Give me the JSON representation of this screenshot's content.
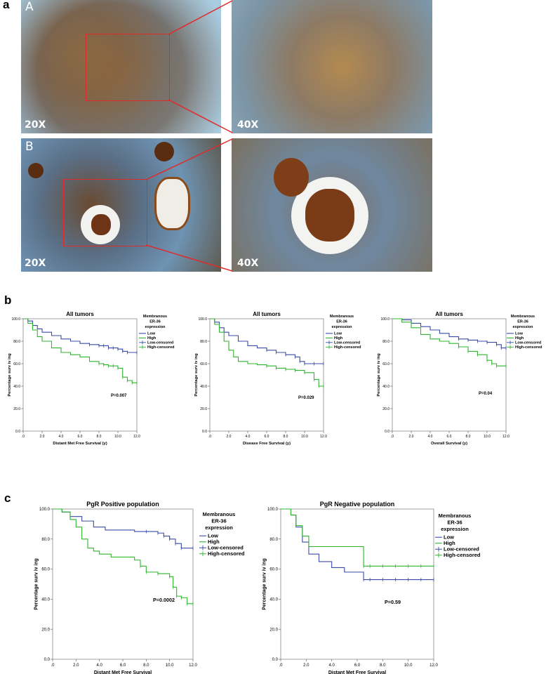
{
  "panel_a": {
    "letter": "a",
    "rows": [
      {
        "tag": "A",
        "left_mag": "20X",
        "right_mag": "40X"
      },
      {
        "tag": "B",
        "left_mag": "20X",
        "right_mag": "40X"
      }
    ]
  },
  "panel_b": {
    "letter": "b",
    "legend_title": [
      "Membranous",
      "ER-36",
      "expression"
    ],
    "legend_items": [
      "Low",
      "High",
      "Low-censored",
      "High-censored"
    ],
    "ylabel": "Percentage surv iv ing"
  },
  "panel_c": {
    "letter": "c",
    "legend_title": [
      "Membranous",
      "ER-36",
      "expression"
    ],
    "legend_items": [
      "Low",
      "High",
      "Low-censored",
      "High-censored"
    ],
    "ylabel": "Percentage surv iv ing"
  },
  "colors": {
    "low": "#3a4ba8",
    "high": "#2fb52f"
  },
  "chart_data": [
    {
      "type": "line",
      "title": "All tumors",
      "xlabel": "Distant Met Free Survival (y)",
      "ylabel": "Percentage surv iv ing",
      "xlim": [
        0,
        12
      ],
      "ylim": [
        0,
        100
      ],
      "x_ticks": [
        ".0",
        "2.0",
        "4.0",
        "6.0",
        "8.0",
        "10.0",
        "12.0"
      ],
      "y_ticks": [
        "0.0",
        "20.0",
        "40.0",
        "60.0",
        "80.0",
        "100.0"
      ],
      "annotation": "P=0.007",
      "series": [
        {
          "name": "Low",
          "x": [
            0,
            0.5,
            1,
            1.5,
            2,
            3,
            4,
            5,
            6,
            7,
            8,
            8.5,
            9,
            9.5,
            10,
            10.5,
            11,
            12
          ],
          "y": [
            100,
            98,
            94,
            91,
            88,
            85,
            82,
            80,
            78,
            77,
            76,
            76,
            74,
            74,
            73,
            71,
            70,
            70
          ]
        },
        {
          "name": "High",
          "x": [
            0,
            0.5,
            1,
            1.5,
            2,
            3,
            4,
            5,
            6,
            7,
            8,
            8.5,
            9,
            9.5,
            10,
            10.5,
            11,
            11.5,
            12
          ],
          "y": [
            100,
            96,
            90,
            84,
            80,
            74,
            70,
            68,
            66,
            62,
            60,
            59,
            58,
            58,
            56,
            48,
            45,
            43,
            43
          ]
        }
      ]
    },
    {
      "type": "line",
      "title": "All tumors",
      "xlabel": "Disease Free Survival (y)",
      "ylabel": "Percentage surv iv ing",
      "xlim": [
        0,
        12
      ],
      "ylim": [
        0,
        100
      ],
      "x_ticks": [
        ".0",
        "2.0",
        "4.0",
        "6.0",
        "8.0",
        "10.0",
        "12.0"
      ],
      "y_ticks": [
        "0.0",
        "20.0",
        "40.0",
        "60.0",
        "80.0",
        "100.0"
      ],
      "annotation": "P=0.029",
      "series": [
        {
          "name": "Low",
          "x": [
            0,
            0.5,
            1,
            1.5,
            2,
            3,
            4,
            5,
            6,
            7,
            8,
            9,
            9.5,
            10,
            11,
            12
          ],
          "y": [
            100,
            97,
            92,
            88,
            85,
            80,
            76,
            74,
            72,
            70,
            68,
            66,
            62,
            60,
            60,
            60
          ]
        },
        {
          "name": "High",
          "x": [
            0,
            0.5,
            1,
            1.5,
            2,
            2.5,
            3,
            4,
            5,
            6,
            7,
            8,
            9,
            10,
            11,
            11.5,
            12
          ],
          "y": [
            100,
            95,
            88,
            80,
            72,
            66,
            62,
            60,
            59,
            58,
            56,
            55,
            54,
            52,
            46,
            40,
            40
          ]
        }
      ]
    },
    {
      "type": "line",
      "title": "All tumors",
      "xlabel": "Overall Survival (y)",
      "ylabel": "Percentage surv iv ing",
      "xlim": [
        0,
        12
      ],
      "ylim": [
        0,
        100
      ],
      "x_ticks": [
        ".0",
        "2.0",
        "4.0",
        "6.0",
        "8.0",
        "10.0",
        "12.0"
      ],
      "y_ticks": [
        "0.0",
        "20.0",
        "40.0",
        "60.0",
        "80.0",
        "100.0"
      ],
      "annotation": "P=0.04",
      "series": [
        {
          "name": "Low",
          "x": [
            0,
            1,
            2,
            3,
            4,
            5,
            6,
            7,
            8,
            9,
            10,
            11,
            11.5,
            12
          ],
          "y": [
            100,
            99,
            96,
            93,
            90,
            87,
            84,
            82,
            81,
            80,
            79,
            77,
            74,
            74
          ]
        },
        {
          "name": "High",
          "x": [
            0,
            1,
            2,
            3,
            4,
            5,
            6,
            7,
            8,
            9,
            10,
            10.5,
            11,
            12
          ],
          "y": [
            100,
            97,
            92,
            86,
            82,
            80,
            78,
            75,
            71,
            68,
            63,
            60,
            58,
            58
          ]
        }
      ]
    },
    {
      "type": "line",
      "title": "PgR Positive population",
      "xlabel": "Distant Met Free Survival",
      "ylabel": "Percentage surv iv ing",
      "xlim": [
        0,
        12
      ],
      "ylim": [
        0,
        100
      ],
      "x_ticks": [
        ".0",
        "2.0",
        "4.0",
        "6.0",
        "8.0",
        "10.0",
        "12.0"
      ],
      "y_ticks": [
        "0.0",
        "20.0",
        "40.0",
        "60.0",
        "80.0",
        "100.0"
      ],
      "annotation": "P=0.0002",
      "series": [
        {
          "name": "Low",
          "x": [
            0,
            0.8,
            1.5,
            2.5,
            3.5,
            4.5,
            6,
            7,
            8,
            9,
            9.5,
            10,
            10.5,
            11,
            12
          ],
          "y": [
            100,
            98,
            95,
            92,
            88,
            86,
            86,
            85,
            85,
            84,
            82,
            80,
            77,
            74,
            74
          ]
        },
        {
          "name": "High",
          "x": [
            0,
            0.8,
            1.5,
            2,
            2.5,
            3,
            3.5,
            4,
            5,
            6,
            7,
            7.5,
            8,
            9,
            10,
            10.3,
            10.6,
            11,
            11.5,
            12
          ],
          "y": [
            100,
            98,
            93,
            88,
            80,
            74,
            72,
            70,
            68,
            68,
            66,
            62,
            58,
            57,
            55,
            48,
            42,
            41,
            37,
            37
          ]
        }
      ]
    },
    {
      "type": "line",
      "title": "PgR Negative population",
      "xlabel": "Distant Met Free Survival",
      "ylabel": "Percentage surv iv ing",
      "xlim": [
        0,
        12
      ],
      "ylim": [
        0,
        100
      ],
      "x_ticks": [
        ".0",
        "2.0",
        "4.0",
        "6.0",
        "8.0",
        "10.0",
        "12.0"
      ],
      "y_ticks": [
        "0.0",
        "20.0",
        "40.0",
        "60.0",
        "80.0",
        "100.0"
      ],
      "annotation": "P=0.59",
      "series": [
        {
          "name": "Low",
          "x": [
            0,
            0.8,
            1.2,
            1.7,
            2.2,
            3,
            4,
            5,
            6.5,
            7,
            8,
            9,
            10,
            11,
            12
          ],
          "y": [
            100,
            96,
            88,
            78,
            70,
            65,
            61,
            58,
            53,
            53,
            53,
            53,
            53,
            53,
            53
          ]
        },
        {
          "name": "High",
          "x": [
            0,
            0.8,
            1.2,
            1.7,
            2.2,
            3,
            4,
            5,
            6.5,
            7,
            8,
            9,
            10,
            11,
            12
          ],
          "y": [
            100,
            96,
            89,
            82,
            75,
            75,
            75,
            75,
            62,
            62,
            62,
            62,
            62,
            62,
            62
          ]
        }
      ]
    }
  ]
}
